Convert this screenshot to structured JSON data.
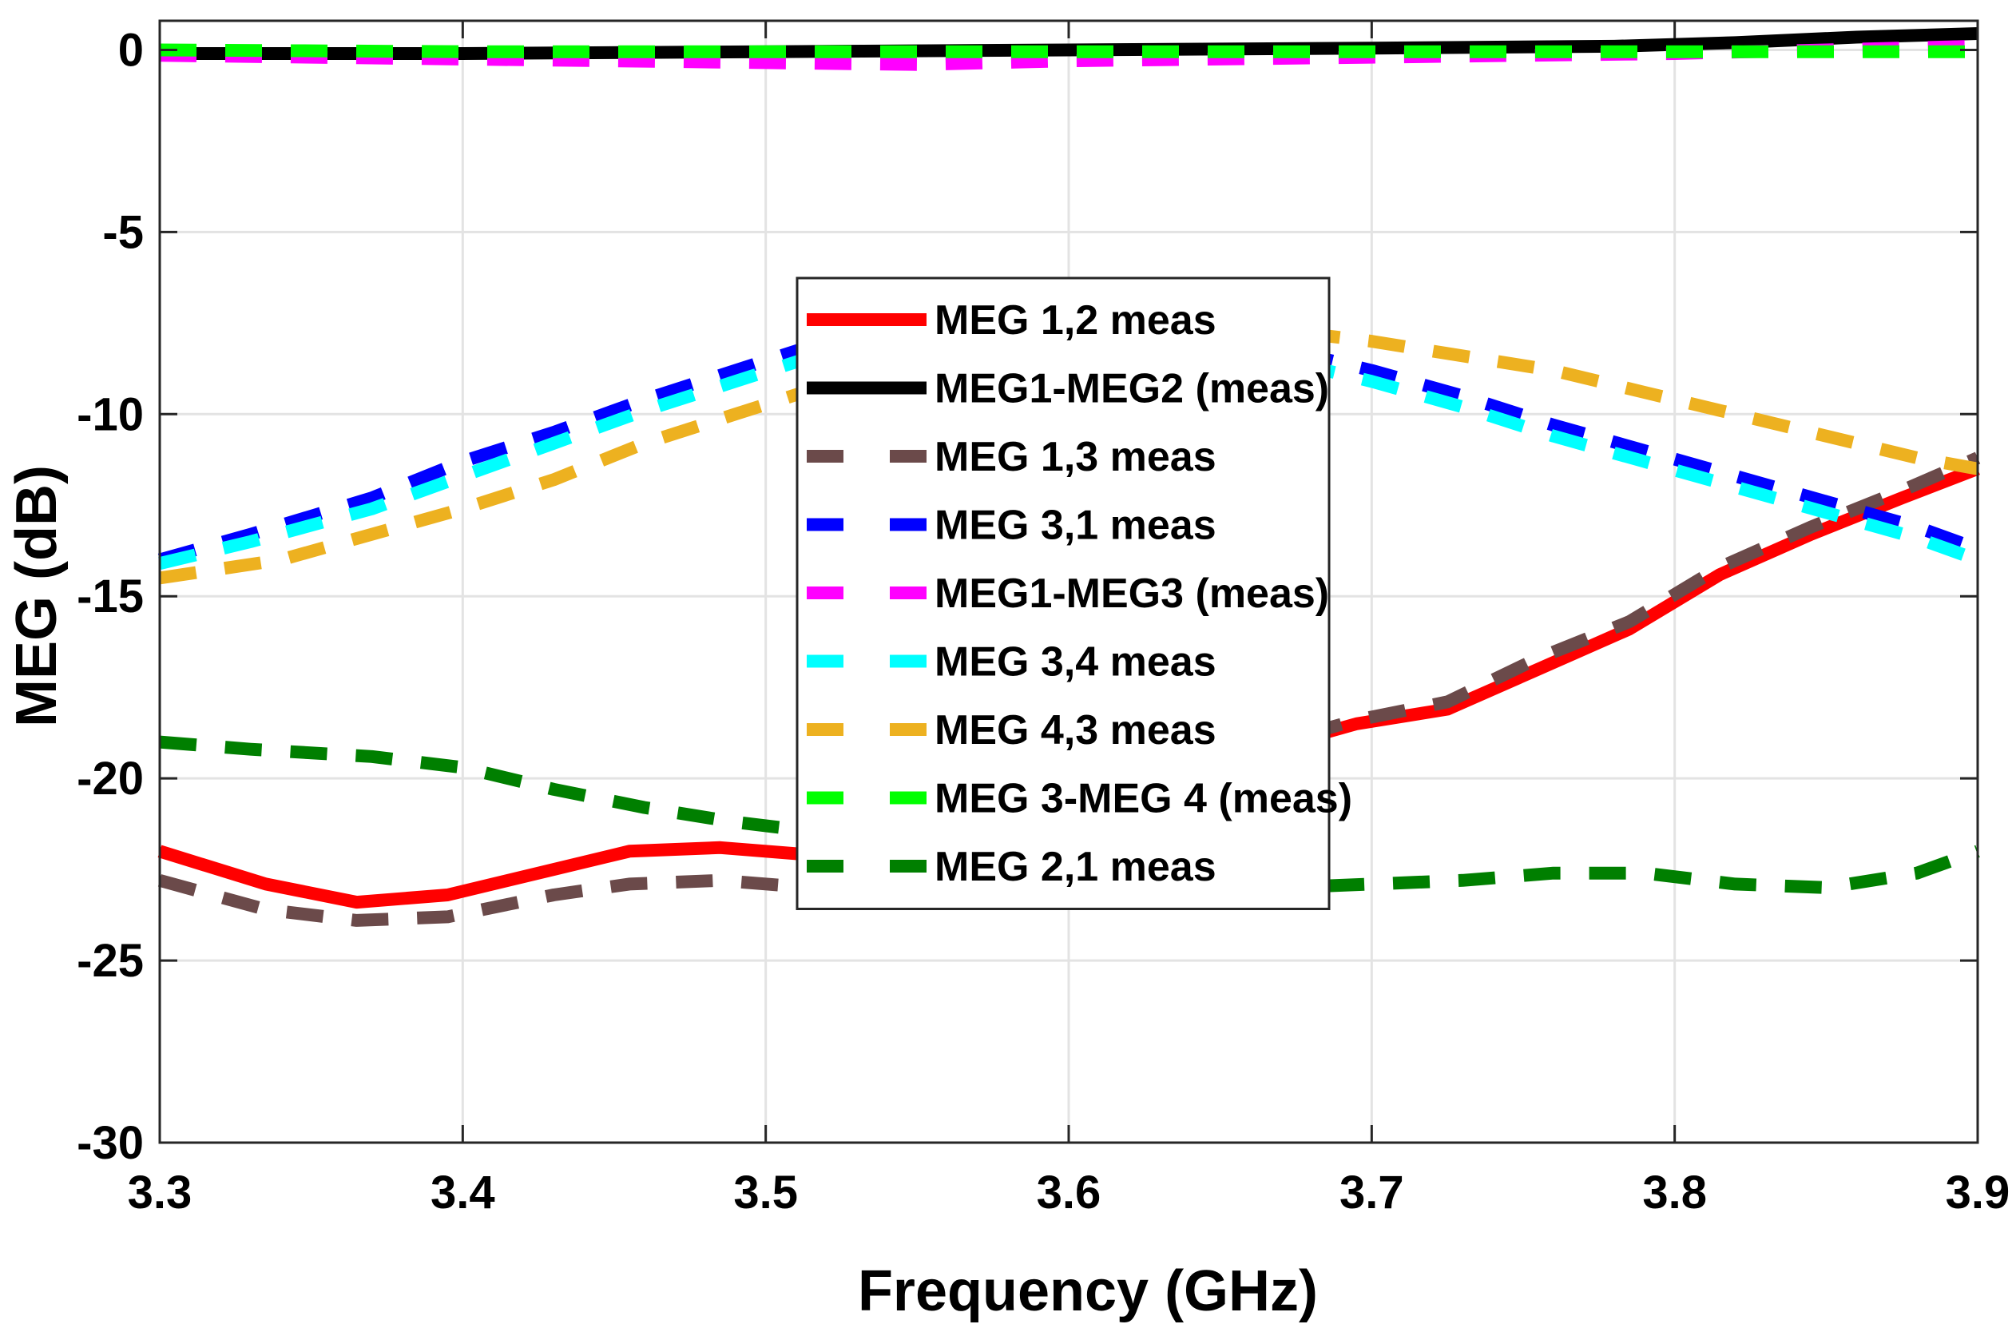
{
  "chart_data": {
    "type": "line",
    "xlabel": "Frequency (GHz)",
    "ylabel": "MEG (dB)",
    "xlim": [
      3.3,
      3.9
    ],
    "ylim": [
      -30,
      0.8
    ],
    "xticks": [
      3.3,
      3.4,
      3.5,
      3.6,
      3.7,
      3.8,
      3.9
    ],
    "xtick_labels": [
      "3.3",
      "3.4",
      "3.5",
      "3.6",
      "3.7",
      "3.8",
      "3.9"
    ],
    "yticks": [
      0,
      -5,
      -10,
      -15,
      -20,
      -25,
      -30
    ],
    "ytick_labels": [
      "0",
      "-5",
      "-10",
      "-15",
      "-20",
      "-25",
      "-30"
    ],
    "grid": true,
    "legend_position": "center",
    "series": [
      {
        "name": "MEG 1,2 meas",
        "color": "#ff0000",
        "style": "solid",
        "x": [
          3.3,
          3.335,
          3.365,
          3.395,
          3.43,
          3.455,
          3.485,
          3.515,
          3.545,
          3.575,
          3.605,
          3.635,
          3.665,
          3.695,
          3.725,
          3.755,
          3.785,
          3.815,
          3.845,
          3.875,
          3.9
        ],
        "y": [
          -22.0,
          -22.9,
          -23.4,
          -23.2,
          -22.5,
          -22.0,
          -21.9,
          -22.1,
          -21.8,
          -21.3,
          -20.7,
          -19.9,
          -19.2,
          -18.5,
          -18.1,
          -17.0,
          -15.9,
          -14.4,
          -13.3,
          -12.3,
          -11.5
        ]
      },
      {
        "name": "MEG1-MEG2 (meas)",
        "color": "#000000",
        "style": "solid",
        "x": [
          3.3,
          3.4,
          3.5,
          3.6,
          3.7,
          3.78,
          3.82,
          3.86,
          3.9
        ],
        "y": [
          -0.1,
          -0.1,
          -0.05,
          0.0,
          0.05,
          0.1,
          0.2,
          0.35,
          0.45
        ]
      },
      {
        "name": "MEG 1,3 meas",
        "color": "#6b4a4a",
        "style": "dashed",
        "x": [
          3.3,
          3.335,
          3.365,
          3.395,
          3.43,
          3.455,
          3.485,
          3.515,
          3.545,
          3.575,
          3.605,
          3.635,
          3.665,
          3.695,
          3.725,
          3.755,
          3.785,
          3.815,
          3.845,
          3.875,
          3.9
        ],
        "y": [
          -22.8,
          -23.6,
          -23.9,
          -23.8,
          -23.2,
          -22.9,
          -22.8,
          -23.0,
          -22.6,
          -21.9,
          -21.0,
          -20.0,
          -19.1,
          -18.4,
          -17.9,
          -16.7,
          -15.7,
          -14.2,
          -13.1,
          -12.1,
          -11.2
        ]
      },
      {
        "name": "MEG 3,1 meas",
        "color": "#0000ff",
        "style": "dashed",
        "x": [
          3.3,
          3.33,
          3.37,
          3.4,
          3.43,
          3.46,
          3.49,
          3.52,
          3.55,
          3.58,
          3.61,
          3.64,
          3.67,
          3.7,
          3.73,
          3.76,
          3.79,
          3.82,
          3.85,
          3.88,
          3.9
        ],
        "y": [
          -14.0,
          -13.3,
          -12.3,
          -11.3,
          -10.5,
          -9.6,
          -8.8,
          -8.0,
          -7.4,
          -7.2,
          -7.3,
          -7.6,
          -8.2,
          -8.8,
          -9.5,
          -10.3,
          -11.0,
          -11.7,
          -12.4,
          -13.1,
          -13.7
        ]
      },
      {
        "name": "MEG1-MEG3 (meas)",
        "color": "#ff00ff",
        "style": "dashed",
        "x": [
          3.3,
          3.4,
          3.5,
          3.55,
          3.6,
          3.7,
          3.8,
          3.85,
          3.9
        ],
        "y": [
          -0.15,
          -0.25,
          -0.35,
          -0.4,
          -0.3,
          -0.2,
          -0.1,
          0.0,
          0.1
        ]
      },
      {
        "name": "MEG 3,4 meas",
        "color": "#00ffff",
        "style": "dashed",
        "x": [
          3.3,
          3.33,
          3.37,
          3.4,
          3.43,
          3.46,
          3.49,
          3.52,
          3.55,
          3.58,
          3.61,
          3.64,
          3.67,
          3.7,
          3.73,
          3.76,
          3.79,
          3.82,
          3.85,
          3.88,
          3.9
        ],
        "y": [
          -14.1,
          -13.5,
          -12.6,
          -11.7,
          -10.8,
          -9.9,
          -9.1,
          -8.3,
          -7.7,
          -7.5,
          -7.6,
          -7.9,
          -8.5,
          -9.1,
          -9.8,
          -10.6,
          -11.3,
          -12.0,
          -12.7,
          -13.4,
          -14.0
        ]
      },
      {
        "name": "MEG 4,3 meas",
        "color": "#edb120",
        "style": "dashed",
        "x": [
          3.3,
          3.34,
          3.37,
          3.4,
          3.43,
          3.46,
          3.49,
          3.52,
          3.55,
          3.58,
          3.61,
          3.64,
          3.67,
          3.7,
          3.73,
          3.76,
          3.79,
          3.82,
          3.85,
          3.88,
          3.9
        ],
        "y": [
          -14.5,
          -14.0,
          -13.3,
          -12.6,
          -11.8,
          -10.8,
          -10.0,
          -9.2,
          -8.5,
          -8.0,
          -7.7,
          -7.6,
          -7.7,
          -8.0,
          -8.4,
          -8.8,
          -9.4,
          -10.0,
          -10.6,
          -11.2,
          -11.5
        ]
      },
      {
        "name": "MEG 3-MEG 4 (meas)",
        "color": "#00ff00",
        "style": "dashed",
        "x": [
          3.3,
          3.4,
          3.5,
          3.6,
          3.7,
          3.8,
          3.9
        ],
        "y": [
          0.0,
          -0.05,
          -0.05,
          -0.05,
          -0.05,
          -0.05,
          -0.05
        ]
      },
      {
        "name": "MEG 2,1 meas",
        "color": "#007f00",
        "style": "dashed",
        "x": [
          3.3,
          3.33,
          3.37,
          3.4,
          3.43,
          3.46,
          3.49,
          3.52,
          3.55,
          3.58,
          3.61,
          3.64,
          3.67,
          3.7,
          3.73,
          3.76,
          3.79,
          3.82,
          3.85,
          3.88,
          3.9
        ],
        "y": [
          -19.0,
          -19.2,
          -19.4,
          -19.7,
          -20.3,
          -20.8,
          -21.2,
          -21.5,
          -21.9,
          -22.3,
          -22.6,
          -22.9,
          -23.0,
          -22.9,
          -22.8,
          -22.6,
          -22.6,
          -22.9,
          -23.0,
          -22.6,
          -22.0
        ]
      }
    ]
  }
}
